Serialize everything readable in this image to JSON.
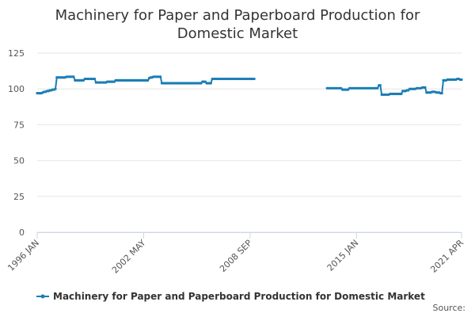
{
  "chart_data": {
    "type": "line",
    "title": "Machinery for Paper and Paperboard Production for Domestic Market",
    "source": "Source:",
    "categories": [
      "1996 JAN",
      null,
      null,
      null,
      null,
      null,
      null,
      null,
      null,
      null,
      null,
      null,
      null,
      null,
      null,
      null,
      null,
      null,
      null,
      null,
      null,
      null,
      null,
      null,
      null,
      null,
      null,
      null,
      null,
      null,
      null,
      null,
      null,
      null,
      null,
      null,
      null,
      null,
      null,
      null,
      null,
      null,
      null,
      null,
      null,
      null,
      null,
      null,
      null,
      null,
      null,
      null,
      null,
      null,
      null,
      null,
      null,
      null,
      null,
      null,
      null,
      null,
      null,
      null,
      null,
      null,
      null,
      null,
      null,
      null,
      null,
      null,
      null,
      null,
      null,
      null,
      "2002 MAY",
      null,
      null,
      null,
      null,
      null,
      null,
      null,
      null,
      null,
      null,
      null,
      null,
      null,
      null,
      null,
      null,
      null,
      null,
      null,
      null,
      null,
      null,
      null,
      null,
      null,
      null,
      null,
      null,
      null,
      null,
      null,
      null,
      null,
      null,
      null,
      null,
      null,
      null,
      null,
      null,
      null,
      null,
      null,
      null,
      null,
      null,
      null,
      null,
      null,
      null,
      null,
      null,
      null,
      null,
      null,
      null,
      null,
      null,
      null,
      null,
      null,
      null,
      null,
      null,
      null,
      null,
      null,
      null,
      null,
      null,
      null,
      null,
      null,
      null,
      null,
      "2008 SEP",
      null,
      null,
      null,
      null,
      null,
      null,
      null,
      null,
      null,
      null,
      null,
      null,
      null,
      null,
      null,
      null,
      null,
      null,
      null,
      null,
      null,
      null,
      null,
      null,
      null,
      null,
      null,
      null,
      null,
      null,
      null,
      null,
      null,
      null,
      null,
      null,
      null,
      null,
      null,
      null,
      null,
      null,
      null,
      null,
      null,
      null,
      null,
      null,
      null,
      null,
      null,
      null,
      null,
      null,
      null,
      null,
      null,
      null,
      null,
      null,
      null,
      null,
      null,
      null,
      null,
      null,
      null,
      null,
      null,
      null,
      null,
      null,
      null,
      null,
      null,
      "2015 JAN",
      null,
      null,
      null,
      null,
      null,
      null,
      null,
      null,
      null,
      null,
      null,
      null,
      null,
      null,
      null,
      null,
      null,
      null,
      null,
      null,
      null,
      null,
      null,
      null,
      null,
      null,
      null,
      null,
      null,
      null,
      null,
      null,
      null,
      null,
      null,
      null,
      null,
      null,
      null,
      null,
      null,
      null,
      null,
      null,
      null,
      null,
      null,
      null,
      null,
      null,
      null,
      null,
      null,
      null,
      null,
      null,
      null,
      null,
      null,
      null,
      null,
      null,
      null,
      null,
      null,
      null,
      null,
      null,
      null,
      null,
      null,
      null,
      null,
      null,
      "2021 APR"
    ],
    "series": [
      {
        "name": "Machinery for Paper and Paperboard Production for Domestic Market",
        "color": "#1a7db5",
        "values": [
          97,
          97,
          97,
          97,
          97.5,
          98,
          98,
          98.5,
          98.5,
          99,
          99,
          99.5,
          99.5,
          100,
          108,
          108,
          108,
          108,
          108,
          108,
          108,
          108.5,
          108.5,
          108.5,
          108.5,
          108.5,
          108.5,
          106,
          106,
          106,
          106,
          106,
          106,
          106,
          107,
          107,
          107,
          107,
          107,
          107,
          107,
          107,
          104.5,
          104.5,
          104.5,
          104.5,
          104.5,
          104.5,
          104.5,
          104.5,
          105,
          105,
          105,
          105,
          105,
          105,
          106,
          106,
          106,
          106,
          106,
          106,
          106,
          106,
          106,
          106,
          106,
          106,
          106,
          106,
          106,
          106,
          106,
          106,
          106,
          106,
          106,
          106,
          106,
          106,
          107.5,
          108,
          108,
          108.5,
          108.5,
          108.5,
          108.5,
          108.5,
          108.5,
          104,
          104,
          104,
          104,
          104,
          104,
          104,
          104,
          104,
          104,
          104,
          104,
          104,
          104,
          104,
          104,
          104,
          104,
          104,
          104,
          104,
          104,
          104,
          104,
          104,
          104,
          104,
          104,
          104,
          105,
          105,
          105,
          104,
          104,
          104,
          104,
          107,
          107,
          107,
          107,
          107,
          107,
          107,
          107,
          107,
          107,
          107,
          107,
          107,
          107,
          107,
          107,
          107,
          107,
          107,
          107,
          107,
          107,
          107,
          107,
          107,
          107,
          107,
          107,
          107,
          107,
          107,
          null,
          null,
          null,
          null,
          null,
          null,
          null,
          null,
          null,
          null,
          null,
          null,
          null,
          null,
          null,
          null,
          null,
          null,
          null,
          null,
          null,
          null,
          null,
          null,
          null,
          null,
          null,
          null,
          null,
          null,
          null,
          null,
          null,
          null,
          null,
          null,
          null,
          null,
          null,
          null,
          null,
          null,
          null,
          null,
          null,
          null,
          null,
          null,
          null,
          null,
          null,
          100.5,
          100.5,
          100.5,
          100.5,
          100.5,
          100.5,
          100.5,
          100.5,
          100.5,
          100.5,
          100.5,
          99.5,
          99.5,
          99.5,
          99.5,
          99.5,
          100.5,
          100.5,
          100.5,
          100.5,
          100.5,
          100.5,
          100.5,
          100.5,
          100.5,
          100.5,
          100.5,
          100.5,
          100.5,
          100.5,
          100.5,
          100.5,
          100.5,
          100.5,
          100.5,
          100.5,
          100.5,
          102.5,
          102.5,
          96,
          96,
          96,
          96,
          96,
          96,
          96.5,
          96.5,
          96.5,
          96.5,
          96.5,
          96.5,
          96.5,
          96.5,
          96.5,
          98.5,
          98.5,
          98.5,
          99,
          99,
          100,
          100,
          100,
          100,
          100,
          100.5,
          100.5,
          100.5,
          100.5,
          101,
          101,
          101,
          97.5,
          97.5,
          97.5,
          97.5,
          98,
          98,
          98,
          97.5,
          97.5,
          97.5,
          97,
          97,
          106,
          106,
          106,
          106.5,
          106.5,
          106.5,
          106.5,
          106.5,
          106.5,
          106.5,
          107,
          107,
          106.5,
          106.5
        ]
      }
    ],
    "ylim": [
      0,
      125
    ],
    "yticks": [
      0,
      25,
      50,
      75,
      100,
      125
    ],
    "grid": true,
    "legend": "bottom"
  }
}
